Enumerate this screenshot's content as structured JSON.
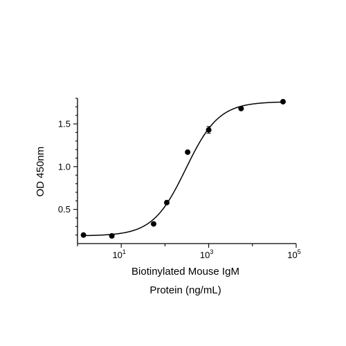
{
  "chart_data": {
    "type": "scatter",
    "title": "",
    "xlabel_line1": "Biotinylated Mouse IgM",
    "xlabel_line2": "Protein (ng/mL)",
    "ylabel": "OD 450nm",
    "x_scale": "log10",
    "xlim": [
      1,
      100000
    ],
    "ylim": [
      0.1,
      1.8
    ],
    "x_ticks_major": [
      {
        "base": "10",
        "exp": "1",
        "value": 10
      },
      {
        "base": "10",
        "exp": "3",
        "value": 1000
      },
      {
        "base": "10",
        "exp": "5",
        "value": 100000
      }
    ],
    "y_ticks_major": [
      {
        "label": "0.5",
        "value": 0.5
      },
      {
        "label": "1.0",
        "value": 1.0
      },
      {
        "label": "1.5",
        "value": 1.5
      }
    ],
    "series": [
      {
        "x": [
          1.37,
          6.1,
          55,
          110,
          330,
          1000,
          5500,
          50000
        ],
        "y": [
          0.2,
          0.19,
          0.33,
          0.58,
          1.17,
          1.43,
          1.68,
          1.76
        ],
        "yerr": [
          0,
          0,
          0,
          0,
          0,
          0.04,
          0,
          0
        ]
      }
    ],
    "fit": {
      "model": "4PL",
      "bottom": 0.19,
      "top": 1.76,
      "ec50": 300,
      "hill": 1.15
    },
    "grid": false,
    "legend": "none",
    "colors": {
      "marker": "#000000",
      "line": "#000000",
      "axis": "#000000"
    }
  }
}
